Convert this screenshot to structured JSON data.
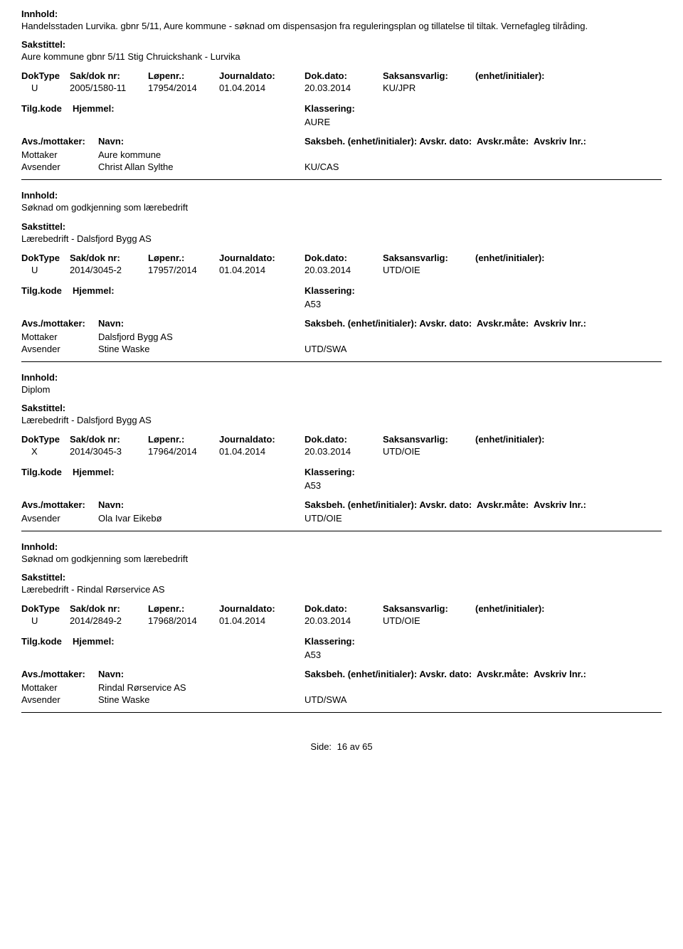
{
  "labels": {
    "innhold": "Innhold:",
    "sakstittel": "Sakstittel:",
    "doktype": "DokType",
    "sakdok": "Sak/dok nr:",
    "lopenr": "Løpenr.:",
    "journaldato": "Journaldato:",
    "dokdato": "Dok.dato:",
    "saksansvarlig": "Saksansvarlig:",
    "enhet": "(enhet/initialer):",
    "tilgkode": "Tilg.kode",
    "hjemmel": "Hjemmel:",
    "klassering": "Klassering:",
    "avsmottaker": "Avs./mottaker:",
    "navn": "Navn:",
    "saksbeh": "Saksbeh.",
    "saksbeh_enhet": "(enhet/initialer):",
    "avskr_dato": "Avskr. dato:",
    "avskr_mate": "Avskr.måte:",
    "avskriv_lnr": "Avskriv lnr.:",
    "mottaker": "Mottaker",
    "avsender": "Avsender",
    "side": "Side:",
    "av": "av"
  },
  "footer": {
    "page": "16",
    "total": "65"
  },
  "records": [
    {
      "innhold": "Handelsstaden Lurvika. gbnr 5/11, Aure kommune - søknad om dispensasjon fra reguleringsplan og tillatelse til tiltak. Vernefagleg tilråding.",
      "sakstittel": "Aure kommune gbnr 5/11 Stig Chruickshank - Lurvika",
      "doktype": "U",
      "sakdok": "2005/1580-11",
      "lopenr": "17954/2014",
      "journaldato": "01.04.2014",
      "dokdato": "20.03.2014",
      "saksansvarlig": "KU/JPR",
      "klassering": "AURE",
      "parties": [
        {
          "role": "Mottaker",
          "name": "Aure kommune",
          "code": ""
        },
        {
          "role": "Avsender",
          "name": "Christ Allan Sylthe",
          "code": "KU/CAS"
        }
      ]
    },
    {
      "innhold": "Søknad om godkjenning som lærebedrift",
      "sakstittel": "Lærebedrift - Dalsfjord Bygg AS",
      "doktype": "U",
      "sakdok": "2014/3045-2",
      "lopenr": "17957/2014",
      "journaldato": "01.04.2014",
      "dokdato": "20.03.2014",
      "saksansvarlig": "UTD/OIE",
      "klassering": "A53",
      "parties": [
        {
          "role": "Mottaker",
          "name": "Dalsfjord Bygg AS",
          "code": ""
        },
        {
          "role": "Avsender",
          "name": "Stine Waske",
          "code": "UTD/SWA"
        }
      ]
    },
    {
      "innhold": "Diplom",
      "sakstittel": "Lærebedrift - Dalsfjord Bygg AS",
      "doktype": "X",
      "sakdok": "2014/3045-3",
      "lopenr": "17964/2014",
      "journaldato": "01.04.2014",
      "dokdato": "20.03.2014",
      "saksansvarlig": "UTD/OIE",
      "klassering": "A53",
      "parties": [
        {
          "role": "Avsender",
          "name": "Ola Ivar Eikebø",
          "code": "UTD/OIE"
        }
      ]
    },
    {
      "innhold": "Søknad om godkjenning som lærebedrift",
      "sakstittel": "Lærebedrift - Rindal Rørservice AS",
      "doktype": "U",
      "sakdok": "2014/2849-2",
      "lopenr": "17968/2014",
      "journaldato": "01.04.2014",
      "dokdato": "20.03.2014",
      "saksansvarlig": "UTD/OIE",
      "klassering": "A53",
      "parties": [
        {
          "role": "Mottaker",
          "name": "Rindal Rørservice AS",
          "code": ""
        },
        {
          "role": "Avsender",
          "name": "Stine Waske",
          "code": "UTD/SWA"
        }
      ]
    }
  ]
}
